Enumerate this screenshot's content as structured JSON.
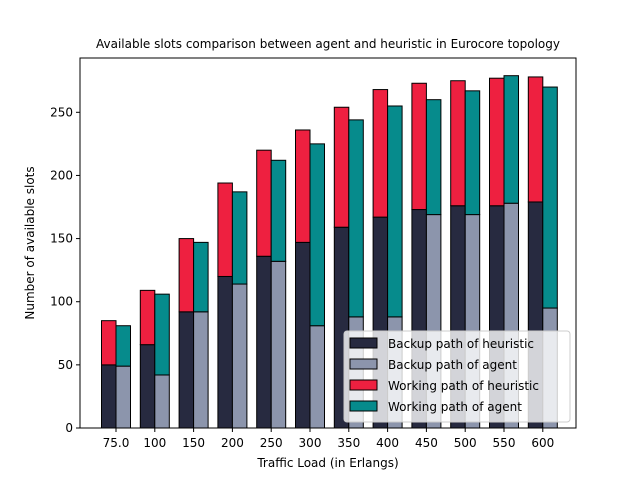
{
  "chart_data": {
    "type": "bar",
    "stacked": true,
    "grouped": true,
    "title": "Available slots comparison between agent and heuristic in Eurocore topology",
    "xlabel": "Traffic Load (in Erlangs)",
    "ylabel": "Number of available slots",
    "categories": [
      "75.0",
      "100",
      "150",
      "200",
      "250",
      "300",
      "350",
      "400",
      "450",
      "500",
      "550",
      "600"
    ],
    "ylim": [
      0,
      293
    ],
    "yticks": [
      0,
      50,
      100,
      150,
      200,
      250
    ],
    "grid": false,
    "legend_position": "lower-right",
    "groups": [
      {
        "name": "heuristic",
        "series": [
          {
            "name": "Backup path of heuristic",
            "color": "#272a40",
            "values": [
              50,
              66,
              92,
              120,
              136,
              147,
              159,
              167,
              173,
              176,
              176,
              179
            ]
          },
          {
            "name": "Working path of heuristic",
            "color": "#ee2040",
            "values": [
              35,
              43,
              58,
              74,
              84,
              89,
              95,
              101,
              100,
              99,
              101,
              99
            ]
          }
        ]
      },
      {
        "name": "agent",
        "series": [
          {
            "name": "Backup path of agent",
            "color": "#8c95ac",
            "values": [
              49,
              42,
              92,
              114,
              132,
              81,
              88,
              88,
              169,
              169,
              178,
              95
            ]
          },
          {
            "name": "Working path of agent",
            "color": "#068b8c",
            "values": [
              32,
              64,
              55,
              73,
              80,
              144,
              156,
              167,
              91,
              98,
              101,
              175
            ]
          }
        ]
      }
    ],
    "legend": [
      {
        "label": "Backup path of heuristic",
        "color": "#272a40"
      },
      {
        "label": "Backup path of agent",
        "color": "#8c95ac"
      },
      {
        "label": "Working path of heuristic",
        "color": "#ee2040"
      },
      {
        "label": "Working path of agent",
        "color": "#068b8c"
      }
    ]
  }
}
